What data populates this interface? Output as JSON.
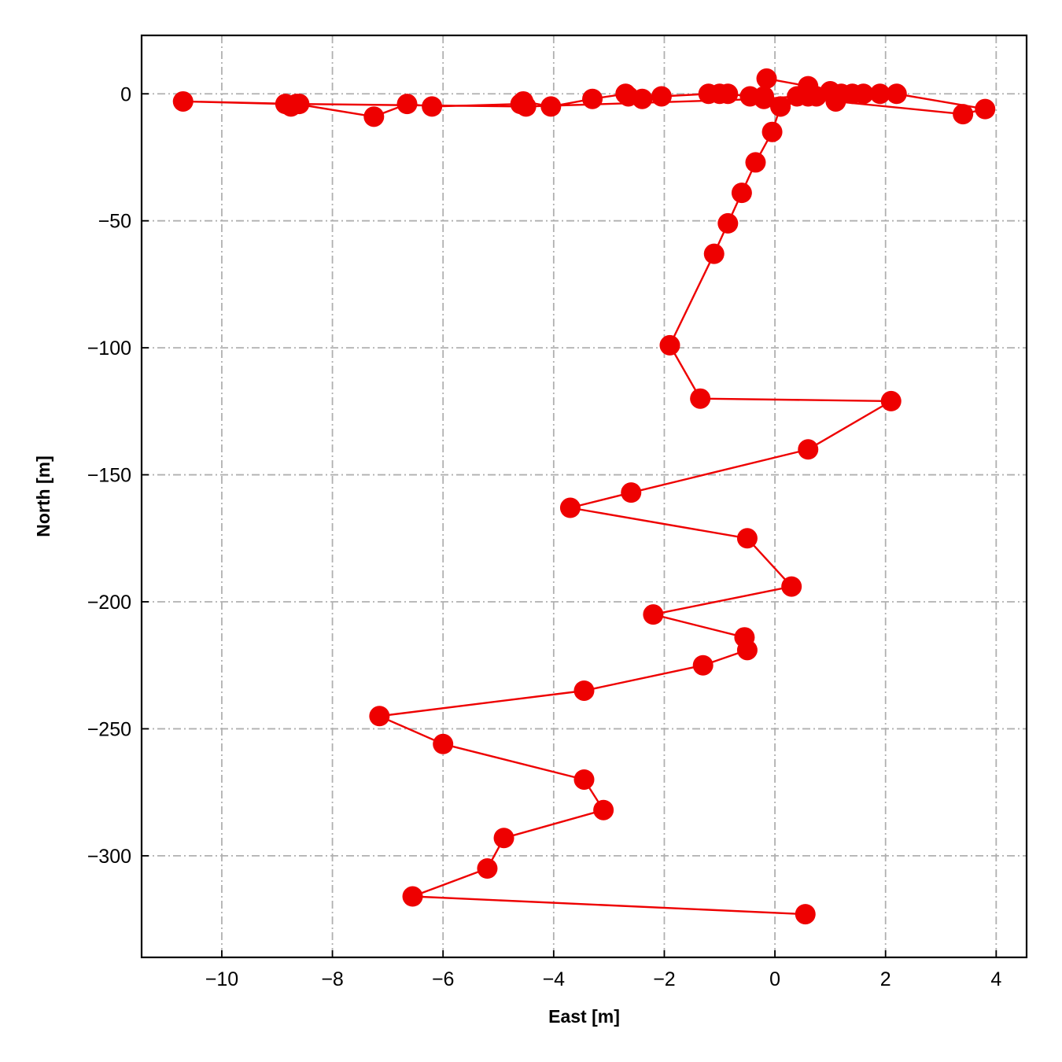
{
  "chart_data": {
    "type": "line",
    "title": "",
    "xlabel": "East [m]",
    "ylabel": "North [m]",
    "xlim": [
      -11.45,
      4.55
    ],
    "ylim": [
      -340,
      23
    ],
    "xticks": [
      -10,
      -8,
      -6,
      -4,
      -2,
      0,
      2,
      4
    ],
    "xtick_labels": [
      "−10",
      "−8",
      "−6",
      "−4",
      "−2",
      "0",
      "2",
      "4"
    ],
    "yticks": [
      0,
      -50,
      -100,
      -150,
      -200,
      -250,
      -300
    ],
    "ytick_labels": [
      "0",
      "−50",
      "−100",
      "−150",
      "−200",
      "−250",
      "−300"
    ],
    "grid": true,
    "grid_style": "dash-dot",
    "colors": {
      "series": "#ee0000",
      "grid": "#b0b0b0",
      "frame": "#000000"
    },
    "series": [
      {
        "marker": "circle",
        "x": [
          -0.15,
          0.6,
          1.0,
          1.2,
          1.4,
          1.6,
          1.9,
          2.2,
          3.8,
          3.4,
          1.1,
          0.6,
          0.1,
          -0.2,
          -0.45,
          -0.85,
          -1.0,
          -1.2,
          -2.05,
          -2.4,
          -2.65,
          -2.7,
          -3.3,
          -4.05,
          -4.55,
          -4.6,
          -6.2,
          -6.65,
          -7.25,
          -8.65,
          -8.75,
          -8.85,
          -10.7,
          -8.6,
          -4.5,
          -0.2,
          0.4,
          0.75,
          0.1,
          -0.05,
          -0.35,
          -0.6,
          -0.85,
          -1.1,
          -1.9,
          -1.35,
          2.1,
          0.6,
          -2.6,
          -3.7,
          -0.5,
          0.3,
          -2.2,
          -0.55,
          -0.5,
          -1.3,
          -3.45,
          -7.15,
          -6.0,
          -3.45,
          -3.1,
          -4.9,
          -5.2,
          -6.55,
          0.55
        ],
        "y": [
          6,
          3,
          1,
          0,
          0,
          0,
          0,
          0,
          -6,
          -8,
          -3,
          -1,
          -5,
          -1,
          -1,
          0,
          0,
          0,
          -1,
          -2,
          -1,
          0,
          -2,
          -5,
          -3,
          -4,
          -5,
          -4,
          -9,
          -4,
          -5,
          -4,
          -3,
          -4,
          -5,
          -2,
          -1,
          -1,
          -5,
          -15,
          -27,
          -39,
          -51,
          -63,
          -99,
          -120,
          -121,
          -140,
          -157,
          -163,
          -175,
          -194,
          -205,
          -214,
          -219,
          -225,
          -235,
          -245,
          -256,
          -270,
          -282,
          -293,
          -305,
          -316,
          -323
        ]
      }
    ]
  }
}
